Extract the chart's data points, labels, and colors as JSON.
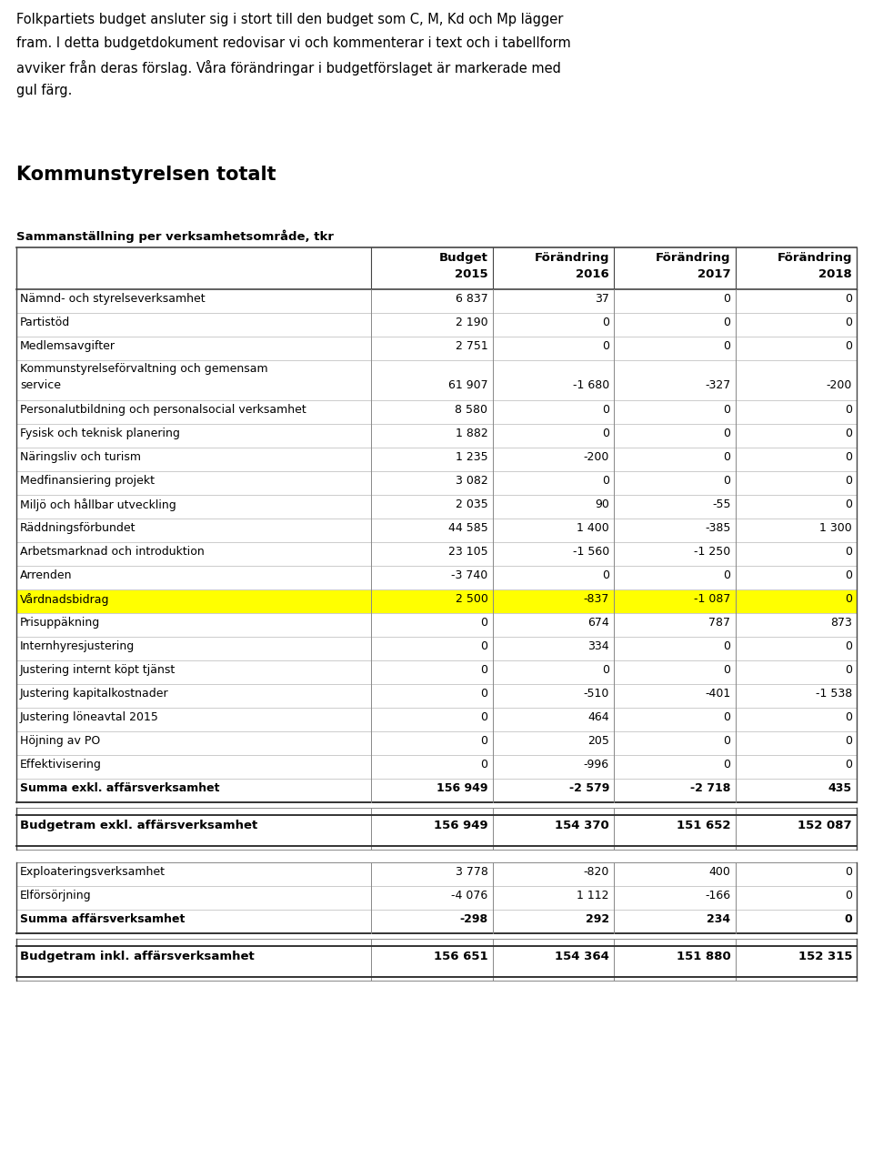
{
  "intro_lines": [
    "Folkpartiets budget ansluter sig i stort till den budget som C, M, Kd och Mp lägger",
    "fram. I detta budgetdokument redovisar vi och kommenterar i text och i tabellform",
    "avviker från deras förslag. Våra förändringar i budgetförslaget är markerade med",
    "gul färg."
  ],
  "section_title": "Kommunstyrelsen totalt",
  "subtitle": "Sammanställning per verksamhetsområde, tkr",
  "col_headers": [
    "Budget\n2015",
    "Förändring\n2016",
    "Förändring\n2017",
    "Förändring\n2018"
  ],
  "rows": [
    {
      "label": "Nämnd- och styrelseverksamhet",
      "values": [
        "6 837",
        "37",
        "0",
        "0"
      ],
      "highlight": false,
      "bold": false,
      "double": false
    },
    {
      "label": "Partistöd",
      "values": [
        "2 190",
        "0",
        "0",
        "0"
      ],
      "highlight": false,
      "bold": false,
      "double": false
    },
    {
      "label": "Medlemsavgifter",
      "values": [
        "2 751",
        "0",
        "0",
        "0"
      ],
      "highlight": false,
      "bold": false,
      "double": false
    },
    {
      "label": "Kommunstyrelseförvaltning och gemensam\nservice",
      "values": [
        "61 907",
        "-1 680",
        "-327",
        "-200"
      ],
      "highlight": false,
      "bold": false,
      "double": true
    },
    {
      "label": "Personalutbildning och personalsocial verksamhet",
      "values": [
        "8 580",
        "0",
        "0",
        "0"
      ],
      "highlight": false,
      "bold": false,
      "double": false
    },
    {
      "label": "Fysisk och teknisk planering",
      "values": [
        "1 882",
        "0",
        "0",
        "0"
      ],
      "highlight": false,
      "bold": false,
      "double": false
    },
    {
      "label": "Näringsliv och turism",
      "values": [
        "1 235",
        "-200",
        "0",
        "0"
      ],
      "highlight": false,
      "bold": false,
      "double": false
    },
    {
      "label": "Medfinansiering projekt",
      "values": [
        "3 082",
        "0",
        "0",
        "0"
      ],
      "highlight": false,
      "bold": false,
      "double": false
    },
    {
      "label": "Miljö och hållbar utveckling",
      "values": [
        "2 035",
        "90",
        "-55",
        "0"
      ],
      "highlight": false,
      "bold": false,
      "double": false
    },
    {
      "label": "Räddningsförbundet",
      "values": [
        "44 585",
        "1 400",
        "-385",
        "1 300"
      ],
      "highlight": false,
      "bold": false,
      "double": false
    },
    {
      "label": "Arbetsmarknad och introduktion",
      "values": [
        "23 105",
        "-1 560",
        "-1 250",
        "0"
      ],
      "highlight": false,
      "bold": false,
      "double": false
    },
    {
      "label": "Arrenden",
      "values": [
        "-3 740",
        "0",
        "0",
        "0"
      ],
      "highlight": false,
      "bold": false,
      "double": false
    },
    {
      "label": "Vårdnadsbidrag",
      "values": [
        "2 500",
        "-837",
        "-1 087",
        "0"
      ],
      "highlight": true,
      "bold": false,
      "double": false
    },
    {
      "label": "Prisuppäkning",
      "values": [
        "0",
        "674",
        "787",
        "873"
      ],
      "highlight": false,
      "bold": false,
      "double": false
    },
    {
      "label": "Internhyresjustering",
      "values": [
        "0",
        "334",
        "0",
        "0"
      ],
      "highlight": false,
      "bold": false,
      "double": false
    },
    {
      "label": "Justering internt köpt tjänst",
      "values": [
        "0",
        "0",
        "0",
        "0"
      ],
      "highlight": false,
      "bold": false,
      "double": false
    },
    {
      "label": "Justering kapitalkostnader",
      "values": [
        "0",
        "-510",
        "-401",
        "-1 538"
      ],
      "highlight": false,
      "bold": false,
      "double": false
    },
    {
      "label": "Justering löneavtal 2015",
      "values": [
        "0",
        "464",
        "0",
        "0"
      ],
      "highlight": false,
      "bold": false,
      "double": false
    },
    {
      "label": "Höjning av PO",
      "values": [
        "0",
        "205",
        "0",
        "0"
      ],
      "highlight": false,
      "bold": false,
      "double": false
    },
    {
      "label": "Effektivisering",
      "values": [
        "0",
        "-996",
        "0",
        "0"
      ],
      "highlight": false,
      "bold": false,
      "double": false
    },
    {
      "label": "Summa exkl. affärsverksamhet",
      "values": [
        "156 949",
        "-2 579",
        "-2 718",
        "435"
      ],
      "highlight": false,
      "bold": true,
      "double": false
    }
  ],
  "budget_exkl": {
    "label": "Budgetram exkl. affärsverksamhet",
    "values": [
      "156 949",
      "154 370",
      "151 652",
      "152 087"
    ]
  },
  "affars_rows": [
    {
      "label": "Exploateringsverksamhet",
      "values": [
        "3 778",
        "-820",
        "400",
        "0"
      ],
      "bold": false
    },
    {
      "label": "Elförsörjning",
      "values": [
        "-4 076",
        "1 112",
        "-166",
        "0"
      ],
      "bold": false
    },
    {
      "label": "Summa affärsverksamhet",
      "values": [
        "-298",
        "292",
        "234",
        "0"
      ],
      "bold": true
    }
  ],
  "budget_inkl": {
    "label": "Budgetram inkl. affärsverksamhet",
    "values": [
      "156 651",
      "154 364",
      "151 880",
      "152 315"
    ]
  },
  "highlight_color": "#FFFF00",
  "background_color": "#FFFFFF"
}
